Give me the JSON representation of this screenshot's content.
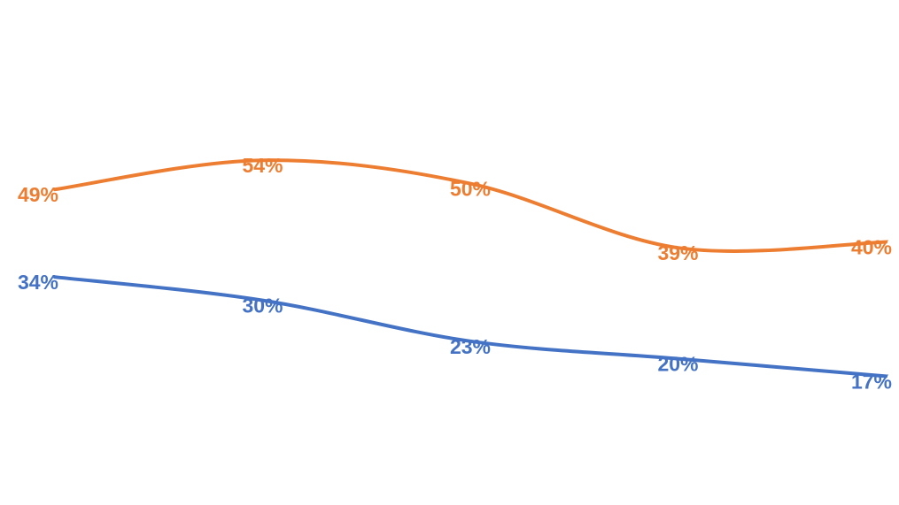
{
  "chart_data": {
    "type": "line",
    "smooth": true,
    "categories": [
      "",
      "",
      "",
      "",
      ""
    ],
    "ylim": [
      0,
      60
    ],
    "grid": false,
    "legend": "none",
    "series": [
      {
        "color": "#ED7D31",
        "values": [
          49,
          54,
          50,
          39,
          40
        ],
        "labels": [
          "49%",
          "54%",
          "50%",
          "39%",
          "40%"
        ]
      },
      {
        "color": "#4472C4",
        "values": [
          34,
          30,
          23,
          20,
          17
        ],
        "labels": [
          "34%",
          "30%",
          "23%",
          "20%",
          "17%"
        ]
      }
    ]
  }
}
